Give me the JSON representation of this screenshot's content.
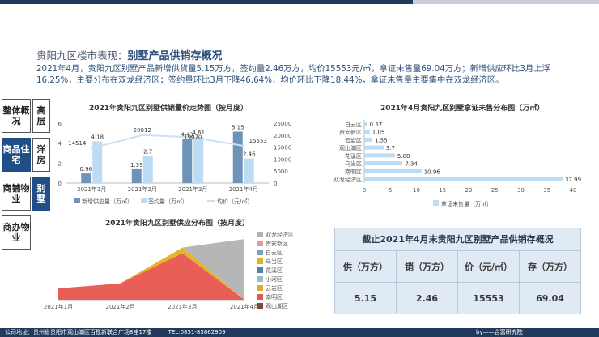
{
  "header": {
    "prefix": "贵阳九区楼市表现：",
    "title": "别墅产品供销存概况",
    "summary": "2021年4月，贵阳九区别墅产品新增供货量5.15万方，签约量2.46万方，均价15553元/㎡，拿证未售量69.04万方；新增供应环比3月上浮16.25%，主要分布在双龙经济区；签约量环比3月下降46.64%，均价环比下降18.44%，拿证未售量主要集中在双龙经济区。"
  },
  "nav": {
    "overview": "整体概况",
    "commercial_residential": "商品住宅",
    "shops": "商铺物业",
    "office": "商办物业",
    "villa_high": "高层",
    "western": "洋房",
    "villa": "别墅"
  },
  "footer": {
    "address": "公司地址：贵州省贵阳市观山湖区百揽新联合广场8座17楼",
    "tel": "TEL:0851-85862909",
    "by": "by——合富研究院"
  },
  "table": {
    "title": "截止2021年4月末贵阳九区别墅产品供销存概况",
    "headers": [
      "供（万方）",
      "销（万方）",
      "价（元/㎡）",
      "存（万方）"
    ],
    "values": [
      "5.15",
      "2.46",
      "15553",
      "69.04"
    ]
  },
  "chart_data": [
    {
      "type": "bar",
      "title": "2021年贵阳九区别墅供销量价走势图（按月度）",
      "categories": [
        "2021年1月",
        "2021年2月",
        "2021年3月",
        "2021年4月"
      ],
      "series": [
        {
          "name": "新增供应量（万㎡）",
          "values": [
            0.96,
            1.39,
            4.43,
            5.15
          ],
          "color": "#6f93b8"
        },
        {
          "name": "签约量（万㎡）",
          "values": [
            4.18,
            2.7,
            4.61,
            2.46
          ],
          "color": "#bcdcf3"
        },
        {
          "name": "均价（元/㎡）",
          "type": "line",
          "axis": "right",
          "values": [
            14514,
            20012,
            19070,
            15553
          ],
          "color": "#cfe0ef"
        }
      ],
      "left_axis": {
        "ticks": [
          0,
          2,
          4,
          6
        ],
        "ylim": [
          0,
          6
        ]
      },
      "right_axis": {
        "ticks": [
          0,
          5000,
          10000,
          15000,
          20000,
          25000
        ],
        "ylim": [
          0,
          25000
        ]
      }
    },
    {
      "type": "bar",
      "orientation": "horizontal",
      "title": "2021年4月贵阳九区别墅拿证未售分布图（万㎡）",
      "categories": [
        "白云区",
        "贵安新区",
        "云岩区",
        "观山湖区",
        "花溪区",
        "乌当区",
        "南明区",
        "双龙经济区"
      ],
      "series": [
        {
          "name": "拿证未售量（万㎡）",
          "values": [
            0.57,
            1.05,
            1.55,
            3.7,
            5.88,
            7.34,
            10.96,
            37.99
          ],
          "color": "#bcdcf3"
        }
      ],
      "xlim": [
        0,
        40
      ],
      "x_ticks": [
        0,
        5,
        10,
        15,
        20,
        25,
        30,
        35,
        40
      ]
    },
    {
      "type": "area",
      "stacked": true,
      "title": "2021年贵阳九区别墅供应分布图（按月度）",
      "categories": [
        "2021年1月",
        "2021年2月",
        "2021年3月",
        "2021年4月"
      ],
      "series": [
        {
          "name": "观山湖区",
          "values": [
            0,
            0,
            0,
            0
          ],
          "color": "#7b4a3a"
        },
        {
          "name": "南明区",
          "values": [
            0.96,
            1.39,
            3.95,
            0
          ],
          "color": "#e8564f"
        },
        {
          "name": "云岩区",
          "values": [
            0,
            0,
            0,
            0
          ],
          "color": "#e1ac34"
        },
        {
          "name": "小河区",
          "values": [
            0,
            0,
            0,
            0
          ],
          "color": "#a0b8d0"
        },
        {
          "name": "花溪区",
          "values": [
            0,
            0,
            0,
            0
          ],
          "color": "#4f7fb0"
        },
        {
          "name": "乌当区",
          "values": [
            0,
            0,
            0.48,
            0
          ],
          "color": "#e3b11c"
        },
        {
          "name": "白云区",
          "values": [
            0,
            0,
            0,
            0
          ],
          "color": "#7aa0c4"
        },
        {
          "name": "贵安新区",
          "values": [
            0,
            0,
            0,
            0
          ],
          "color": "#d7a098"
        },
        {
          "name": "双龙经济区",
          "values": [
            0,
            0,
            0,
            5.15
          ],
          "color": "#b2b2b2"
        }
      ]
    }
  ]
}
